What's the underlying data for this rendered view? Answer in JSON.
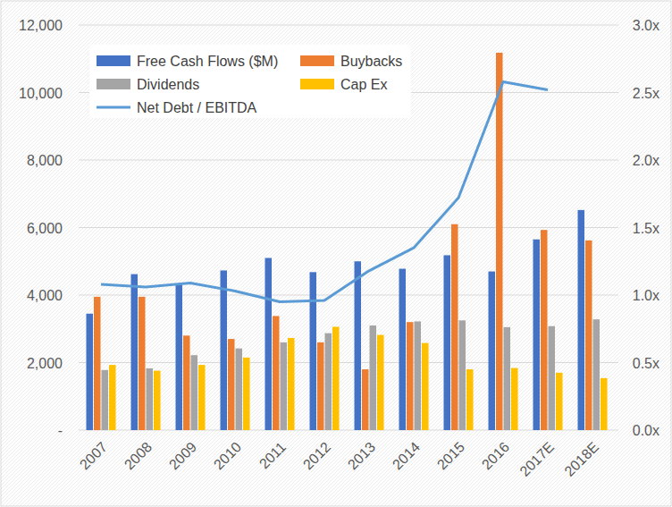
{
  "chart_data": {
    "type": "bar",
    "categories": [
      "2007",
      "2008",
      "2009",
      "2010",
      "2011",
      "2012",
      "2013",
      "2014",
      "2015",
      "2016",
      "2017E",
      "2018E"
    ],
    "series": [
      {
        "name": "Free Cash Flows ($M)",
        "color": "#4472c4",
        "values": [
          3450,
          4620,
          4300,
          4730,
          5100,
          4680,
          5000,
          4780,
          5180,
          4700,
          5650,
          6520
        ]
      },
      {
        "name": "Buybacks",
        "color": "#ed7d31",
        "values": [
          3950,
          3950,
          2800,
          2700,
          3380,
          2600,
          1800,
          3200,
          6100,
          11180,
          5930,
          5620
        ]
      },
      {
        "name": "Dividends",
        "color": "#a5a5a5",
        "values": [
          1780,
          1830,
          2220,
          2420,
          2600,
          2870,
          3100,
          3220,
          3250,
          3050,
          3080,
          3280
        ]
      },
      {
        "name": "Cap Ex",
        "color": "#ffc000",
        "values": [
          1930,
          1760,
          1930,
          2150,
          2730,
          3060,
          2820,
          2580,
          1800,
          1840,
          1700,
          1540
        ]
      },
      {
        "name": "Net Debt / EBITDA",
        "color": "#5b9bd5",
        "type": "line",
        "axis": "y2",
        "values": [
          1.08,
          1.06,
          1.09,
          1.03,
          0.95,
          0.96,
          1.18,
          1.35,
          1.72,
          2.58,
          2.52,
          null
        ]
      }
    ],
    "ylim": [
      0,
      12000
    ],
    "yticks": [
      {
        "value": 0,
        "label": "-"
      },
      {
        "value": 2000,
        "label": "2,000"
      },
      {
        "value": 4000,
        "label": "4,000"
      },
      {
        "value": 6000,
        "label": "6,000"
      },
      {
        "value": 8000,
        "label": "8,000"
      },
      {
        "value": 10000,
        "label": "10,000"
      },
      {
        "value": 12000,
        "label": "12,000"
      }
    ],
    "y2lim": [
      0,
      3
    ],
    "y2ticks": [
      {
        "value": 0,
        "label": "0.0x"
      },
      {
        "value": 0.5,
        "label": "0.5x"
      },
      {
        "value": 1,
        "label": "1.0x"
      },
      {
        "value": 1.5,
        "label": "1.5x"
      },
      {
        "value": 2,
        "label": "2.0x"
      },
      {
        "value": 2.5,
        "label": "2.5x"
      },
      {
        "value": 3,
        "label": "3.0x"
      }
    ],
    "grid": true,
    "legend": "top-left"
  }
}
